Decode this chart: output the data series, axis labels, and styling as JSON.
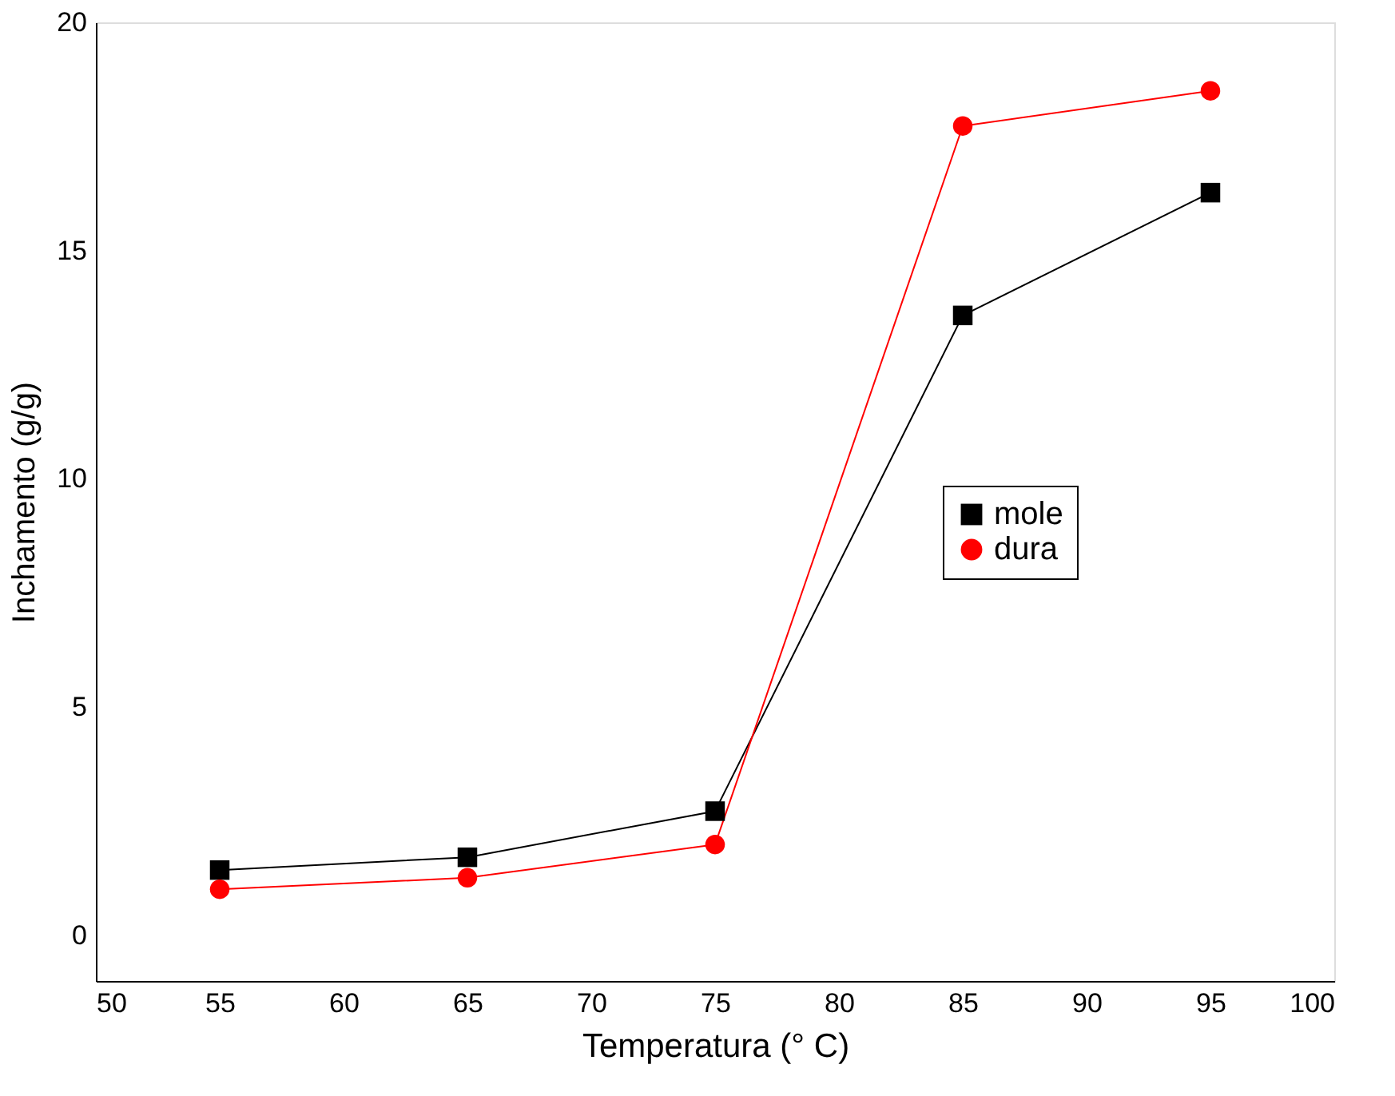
{
  "chart_data": {
    "type": "line",
    "xlabel": "Temperatura  (° C)",
    "ylabel": "Inchamento (g/g)",
    "x": [
      55,
      65,
      75,
      85,
      95
    ],
    "series": [
      {
        "name": "mole",
        "color": "#000000",
        "marker": "square",
        "values": [
          1.43,
          1.71,
          2.72,
          13.58,
          16.27
        ]
      },
      {
        "name": "dura",
        "color": "#ff0000",
        "marker": "circle",
        "values": [
          1.01,
          1.26,
          1.99,
          17.73,
          18.5
        ]
      }
    ],
    "xlim": [
      50,
      100
    ],
    "xticks": [
      50,
      55,
      60,
      65,
      70,
      75,
      80,
      85,
      90,
      95,
      100
    ],
    "ylim": [
      -1,
      20
    ],
    "yticks": [
      0,
      5,
      10,
      15,
      20
    ],
    "grid": false,
    "legend": "right",
    "line_style": "solid"
  }
}
